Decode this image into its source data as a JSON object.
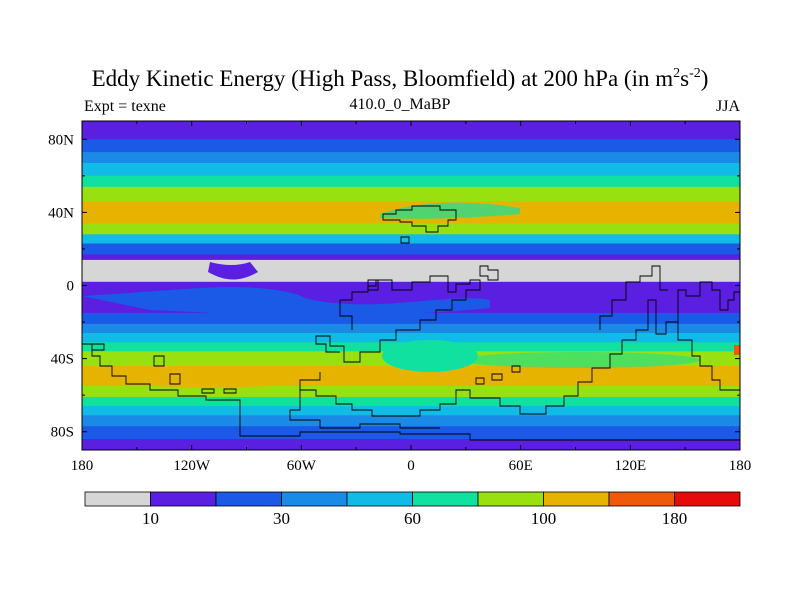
{
  "chart_data": {
    "type": "heatmap",
    "title": "Eddy Kinetic Energy (High Pass, Bloomfield) at 200 hPa (in m",
    "title_units_sup1": "2",
    "title_units_mid": "s",
    "title_units_sup2": "-2",
    "title_units_close": ")",
    "subtitle_left": "Expt = texne",
    "subtitle_center": "410.0_0_MaBP",
    "subtitle_right": "JJA",
    "x_range": [
      -180,
      180
    ],
    "y_range": [
      -90,
      90
    ],
    "x_ticks": [
      {
        "value": -180,
        "label": "180"
      },
      {
        "value": -120,
        "label": "120W"
      },
      {
        "value": -60,
        "label": "60W"
      },
      {
        "value": 0,
        "label": "0"
      },
      {
        "value": 60,
        "label": "60E"
      },
      {
        "value": 120,
        "label": "120E"
      },
      {
        "value": 180,
        "label": "180"
      }
    ],
    "y_ticks": [
      {
        "value": 80,
        "label": "80N"
      },
      {
        "value": 40,
        "label": "40N"
      },
      {
        "value": 0,
        "label": "0"
      },
      {
        "value": -40,
        "label": "40S"
      },
      {
        "value": -80,
        "label": "80S"
      }
    ],
    "zonal_levels": [
      {
        "lat_top": 90,
        "lat_bottom": 80,
        "level": 1
      },
      {
        "lat_top": 80,
        "lat_bottom": 73,
        "level": 2
      },
      {
        "lat_top": 73,
        "lat_bottom": 67,
        "level": 3
      },
      {
        "lat_top": 67,
        "lat_bottom": 60,
        "level": 4
      },
      {
        "lat_top": 60,
        "lat_bottom": 54,
        "level": 5
      },
      {
        "lat_top": 54,
        "lat_bottom": 46,
        "level": 6
      },
      {
        "lat_top": 46,
        "lat_bottom": 34,
        "level": 7
      },
      {
        "lat_top": 34,
        "lat_bottom": 28,
        "level": 6
      },
      {
        "lat_top": 28,
        "lat_bottom": 23,
        "level": 4
      },
      {
        "lat_top": 23,
        "lat_bottom": 17,
        "level": 2
      },
      {
        "lat_top": 17,
        "lat_bottom": 14,
        "level": 1
      },
      {
        "lat_top": 14,
        "lat_bottom": 2,
        "level": 0
      },
      {
        "lat_top": 2,
        "lat_bottom": -15,
        "level": 1
      },
      {
        "lat_top": -15,
        "lat_bottom": -21,
        "level": 2
      },
      {
        "lat_top": -21,
        "lat_bottom": -26,
        "level": 3
      },
      {
        "lat_top": -26,
        "lat_bottom": -31,
        "level": 4
      },
      {
        "lat_top": -31,
        "lat_bottom": -36,
        "level": 5
      },
      {
        "lat_top": -36,
        "lat_bottom": -44,
        "level": 6
      },
      {
        "lat_top": -44,
        "lat_bottom": -55,
        "level": 7
      },
      {
        "lat_top": -55,
        "lat_bottom": -61,
        "level": 6
      },
      {
        "lat_top": -61,
        "lat_bottom": -66,
        "level": 5
      },
      {
        "lat_top": -66,
        "lat_bottom": -71,
        "level": 4
      },
      {
        "lat_top": -71,
        "lat_bottom": -77,
        "level": 3
      },
      {
        "lat_top": -77,
        "lat_bottom": -84,
        "level": 2
      },
      {
        "lat_top": -84,
        "lat_bottom": -90,
        "level": 1
      }
    ],
    "colorbar": {
      "colors": [
        "#d6d6d6",
        "#5a1fe0",
        "#1a5ae6",
        "#1a8ae6",
        "#10bce6",
        "#10e0a0",
        "#98e010",
        "#e6b400",
        "#ee5a0a",
        "#e60a0a"
      ],
      "boundaries": [
        10,
        20,
        30,
        40,
        60,
        80,
        100,
        140,
        180
      ],
      "labels": [
        {
          "after_box": 1,
          "text": "10"
        },
        {
          "after_box": 3,
          "text": "30"
        },
        {
          "after_box": 5,
          "text": "60"
        },
        {
          "after_box": 7,
          "text": "100"
        },
        {
          "after_box": 9,
          "text": "180"
        }
      ]
    }
  }
}
